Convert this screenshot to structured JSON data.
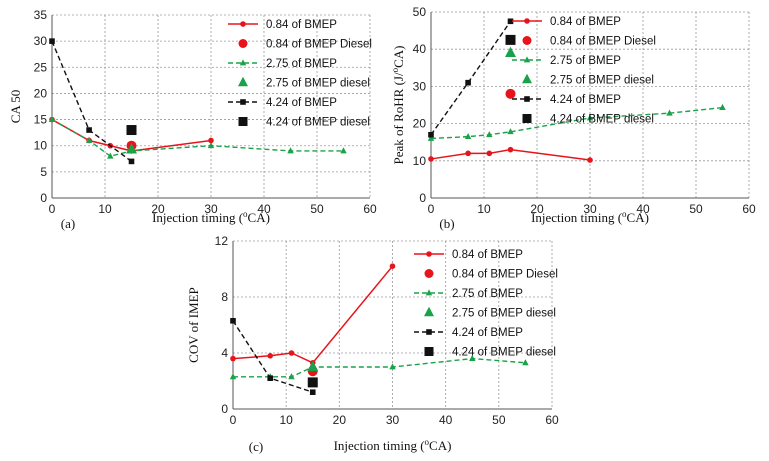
{
  "figure": {
    "xlabel": "Injection timing (",
    "xlabel_sup": "o",
    "xlabel_tail": "CA)"
  },
  "chart_data": [
    {
      "type": "line",
      "panel_label": "(a)",
      "ylabel": "CA 50",
      "ylabel_sup": "",
      "ylabel_tail": "",
      "xlim": [
        0,
        60
      ],
      "ylim": [
        0,
        35
      ],
      "xticks": [
        0,
        10,
        20,
        30,
        40,
        50,
        60
      ],
      "yticks": [
        0,
        5,
        10,
        15,
        20,
        25,
        30,
        35
      ],
      "xtick_labels": [
        "0",
        "10",
        "20",
        "30",
        "40",
        "50",
        "60"
      ],
      "ytick_labels": [
        "0",
        "5",
        "10",
        "15",
        "20",
        "25",
        "30",
        "35"
      ],
      "series": [
        {
          "name": "0.84 of BMEP",
          "style": "red-line",
          "x": [
            0,
            7,
            11,
            15,
            30
          ],
          "y": [
            15,
            11,
            10,
            9,
            11
          ]
        },
        {
          "name": "0.84 of BMEP Diesel",
          "style": "red-dot",
          "x": [
            15
          ],
          "y": [
            10
          ]
        },
        {
          "name": "2.75 of BMEP",
          "style": "green-line",
          "x": [
            0,
            7,
            11,
            15,
            30,
            45,
            55
          ],
          "y": [
            15,
            11,
            8,
            9,
            10,
            9,
            9
          ]
        },
        {
          "name": "2.75 of BMEP diesel",
          "style": "green-tri",
          "x": [
            15
          ],
          "y": [
            9.3
          ]
        },
        {
          "name": "4.24 of BMEP",
          "style": "black-line",
          "x": [
            0,
            7,
            15
          ],
          "y": [
            30,
            13,
            7
          ]
        },
        {
          "name": "4.24 of BMEP diesel",
          "style": "black-square",
          "x": [
            15
          ],
          "y": [
            13
          ]
        }
      ]
    },
    {
      "type": "line",
      "panel_label": "(b)",
      "ylabel": "Peak of RoHR (J/",
      "ylabel_sup": "o",
      "ylabel_tail": "CA)",
      "xlim": [
        0,
        60
      ],
      "ylim": [
        0,
        50
      ],
      "xticks": [
        0,
        10,
        20,
        30,
        40,
        50,
        60
      ],
      "yticks": [
        0,
        10,
        20,
        30,
        40,
        50
      ],
      "xtick_labels": [
        "0",
        "10",
        "20",
        "30",
        "40",
        "50",
        "60"
      ],
      "ytick_labels": [
        "0",
        "10",
        "20",
        "30",
        "40",
        "50"
      ],
      "series": [
        {
          "name": "0.84 of BMEP",
          "style": "red-line",
          "x": [
            0,
            7,
            11,
            15,
            30
          ],
          "y": [
            10.5,
            12,
            12,
            13,
            10.2
          ]
        },
        {
          "name": "0.84 of BMEP Diesel",
          "style": "red-dot",
          "x": [
            15
          ],
          "y": [
            28
          ]
        },
        {
          "name": "2.75 of BMEP",
          "style": "green-line",
          "x": [
            0,
            7,
            11,
            15,
            30,
            45,
            55
          ],
          "y": [
            16,
            16.5,
            17,
            17.8,
            21.5,
            22.8,
            24.3
          ]
        },
        {
          "name": "2.75 of BMEP diesel",
          "style": "green-tri",
          "x": [
            15
          ],
          "y": [
            39
          ]
        },
        {
          "name": "4.24 of BMEP",
          "style": "black-line",
          "x": [
            0,
            7,
            15
          ],
          "y": [
            17,
            31,
            47.5
          ]
        },
        {
          "name": "4.24 of BMEP diesel",
          "style": "black-square",
          "x": [
            15
          ],
          "y": [
            42.5
          ]
        }
      ]
    },
    {
      "type": "line",
      "panel_label": "(c)",
      "ylabel": "COV of IMEP",
      "ylabel_sup": "",
      "ylabel_tail": "",
      "xlim": [
        0,
        60
      ],
      "ylim": [
        0,
        12
      ],
      "xticks": [
        0,
        10,
        20,
        30,
        40,
        50,
        60
      ],
      "yticks": [
        0,
        4,
        8,
        12
      ],
      "xtick_labels": [
        "0",
        "10",
        "20",
        "30",
        "40",
        "50",
        "60"
      ],
      "ytick_labels": [
        "0",
        "4",
        "8",
        "12"
      ],
      "series": [
        {
          "name": "0.84 of BMEP",
          "style": "red-line",
          "x": [
            0,
            7,
            11,
            15,
            30
          ],
          "y": [
            3.6,
            3.8,
            4.0,
            3.3,
            10.2
          ]
        },
        {
          "name": "0.84 of BMEP Diesel",
          "style": "red-dot",
          "x": [
            15
          ],
          "y": [
            2.7
          ]
        },
        {
          "name": "2.75 of BMEP",
          "style": "green-line",
          "x": [
            0,
            7,
            11,
            15,
            30,
            45,
            55
          ],
          "y": [
            2.3,
            2.3,
            2.3,
            3.0,
            3.0,
            3.6,
            3.3
          ]
        },
        {
          "name": "2.75 of BMEP diesel",
          "style": "green-tri",
          "x": [
            15
          ],
          "y": [
            3.0
          ]
        },
        {
          "name": "4.24 of BMEP",
          "style": "black-line",
          "x": [
            0,
            7,
            15
          ],
          "y": [
            6.3,
            2.2,
            1.2
          ]
        },
        {
          "name": "4.24 of BMEP diesel",
          "style": "black-square",
          "x": [
            15
          ],
          "y": [
            1.9
          ]
        }
      ]
    }
  ],
  "colors": {
    "red": "#e8141c",
    "green": "#1aa24a",
    "black": "#111111",
    "grid": "#9a9a9a",
    "axis": "#555555"
  }
}
